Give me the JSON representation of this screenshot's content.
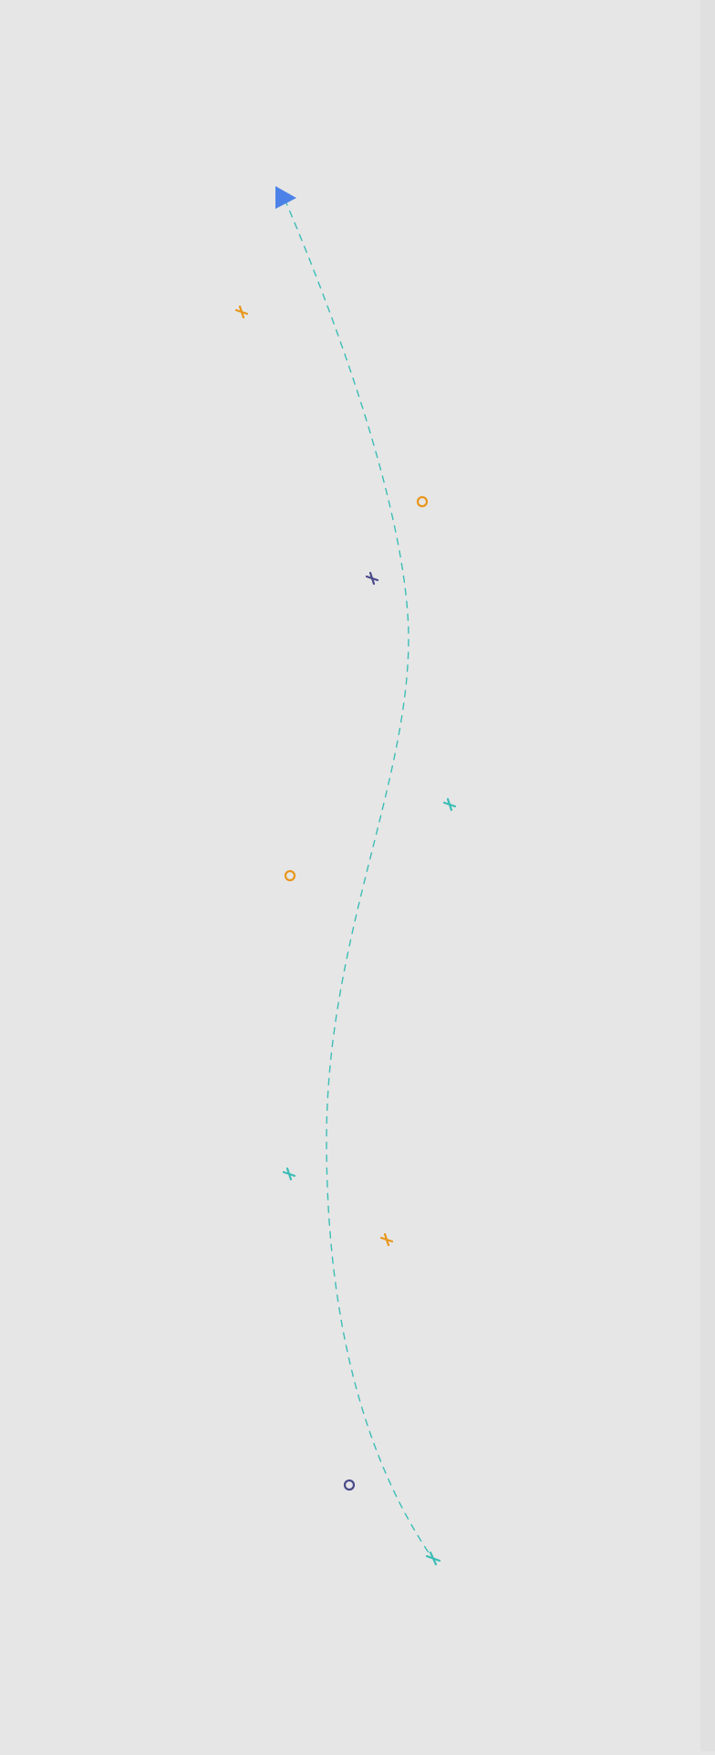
{
  "scene": {
    "background_color": "#e6e6e6",
    "edge_color": "#e0e0e0",
    "path": {
      "color": "#3cbdb6",
      "style": "dashed"
    },
    "start_marker": {
      "shape": "triangle",
      "color": "#4c82e8"
    },
    "end_marker": {
      "shape": "cross",
      "color": "#3cbdb6"
    },
    "scatter_markers": [
      {
        "shape": "cross",
        "color": "#e8961c"
      },
      {
        "shape": "ring",
        "color": "#e8961c"
      },
      {
        "shape": "cross",
        "color": "#4a4a8a"
      },
      {
        "shape": "cross",
        "color": "#3cbdb6"
      },
      {
        "shape": "ring",
        "color": "#e8961c"
      },
      {
        "shape": "cross",
        "color": "#3cbdb6"
      },
      {
        "shape": "cross",
        "color": "#e8961c"
      },
      {
        "shape": "ring",
        "color": "#4a4a8a"
      }
    ]
  }
}
